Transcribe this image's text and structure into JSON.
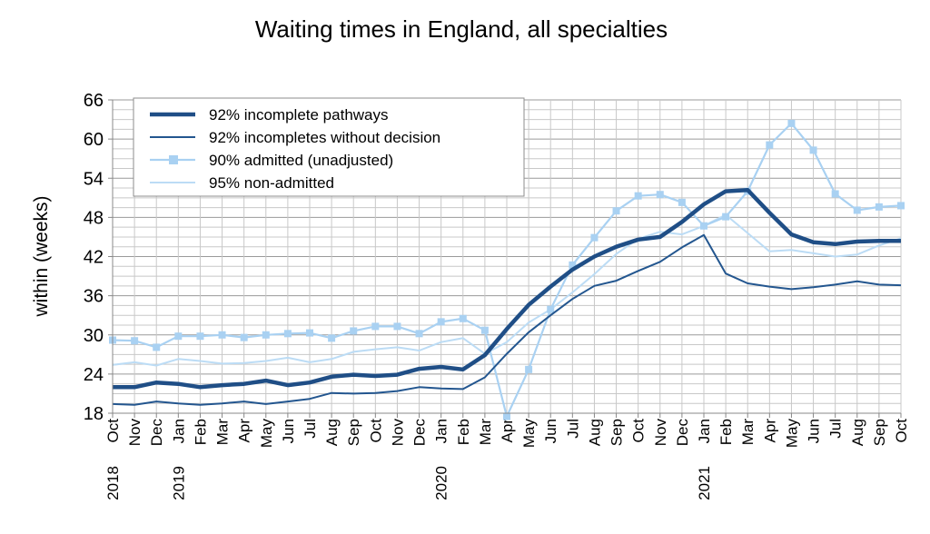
{
  "chart_data": {
    "type": "line",
    "title": "Waiting times in England, all specialties",
    "ylabel": "within  (weeks)",
    "xlabel": "",
    "ylim": [
      18,
      66
    ],
    "yticks": [
      "18",
      "24",
      "30",
      "36",
      "42",
      "48",
      "54",
      "60",
      "66"
    ],
    "grid": true,
    "legend_position": "top-left",
    "categories": [
      "Oct",
      "Nov",
      "Dec",
      "Jan",
      "Feb",
      "Mar",
      "Apr",
      "May",
      "Jun",
      "Jul",
      "Aug",
      "Sep",
      "Oct",
      "Nov",
      "Dec",
      "Jan",
      "Feb",
      "Mar",
      "Apr",
      "May",
      "Jun",
      "Jul",
      "Aug",
      "Sep",
      "Oct",
      "Nov",
      "Dec",
      "Jan",
      "Feb",
      "Mar",
      "Apr",
      "May",
      "Jun",
      "Jul",
      "Aug",
      "Sep",
      "Oct"
    ],
    "year_labels": [
      {
        "index": 0,
        "label": "2018"
      },
      {
        "index": 3,
        "label": "2019"
      },
      {
        "index": 15,
        "label": "2020"
      },
      {
        "index": 27,
        "label": "2021"
      }
    ],
    "series": [
      {
        "name": "92% incomplete pathways",
        "color": "#1f4e86",
        "values": [
          22.0,
          22.0,
          22.7,
          22.5,
          22.0,
          22.3,
          22.5,
          23.0,
          22.3,
          22.7,
          23.6,
          23.9,
          23.7,
          23.9,
          24.8,
          25.1,
          24.7,
          26.9,
          30.9,
          34.6,
          37.4,
          40.0,
          42.0,
          43.5,
          44.6,
          45.0,
          47.3,
          50.0,
          52.0,
          52.2,
          48.7,
          45.4,
          44.2,
          43.9,
          44.3,
          44.4,
          44.4
        ]
      },
      {
        "name": "92% incompletes without decision",
        "color": "#23568f",
        "values": [
          19.4,
          19.3,
          19.8,
          19.5,
          19.3,
          19.5,
          19.8,
          19.4,
          19.8,
          20.2,
          21.1,
          21.0,
          21.1,
          21.4,
          22.0,
          21.8,
          21.7,
          23.5,
          27.1,
          30.4,
          33.0,
          35.5,
          37.5,
          38.3,
          39.8,
          41.2,
          43.4,
          45.3,
          39.4,
          37.9,
          37.4,
          37.0,
          37.3,
          37.7,
          38.2,
          37.7,
          37.6
        ]
      },
      {
        "name": "90% admitted (unadjusted)",
        "color": "#a9d1f2",
        "marker": "square",
        "values": [
          29.2,
          29.1,
          28.1,
          29.8,
          29.8,
          30.0,
          29.6,
          30.0,
          30.2,
          30.3,
          29.5,
          30.6,
          31.3,
          31.3,
          30.2,
          32.0,
          32.5,
          30.7,
          17.5,
          24.7,
          33.9,
          40.7,
          44.9,
          49.0,
          51.3,
          51.5,
          50.3,
          46.7,
          48.1,
          52.0,
          59.1,
          62.4,
          58.3,
          51.6,
          49.1,
          49.6,
          49.8
        ]
      },
      {
        "name": "95% non-admitted",
        "color": "#bcdcf5",
        "values": [
          25.4,
          25.8,
          25.3,
          26.3,
          26.0,
          25.6,
          25.7,
          26.0,
          26.5,
          25.8,
          26.3,
          27.4,
          27.8,
          28.1,
          27.6,
          28.9,
          29.5,
          27.1,
          28.9,
          31.9,
          33.9,
          36.5,
          39.3,
          42.4,
          44.7,
          45.8,
          45.4,
          46.7,
          48.4,
          45.6,
          42.8,
          43.0,
          42.5,
          42.0,
          42.3,
          43.7,
          44.8
        ]
      }
    ]
  }
}
